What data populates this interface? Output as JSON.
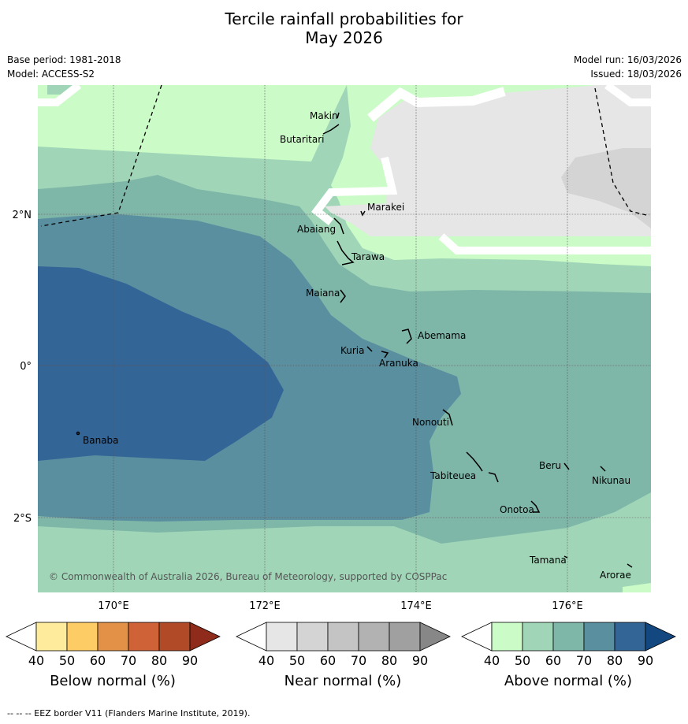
{
  "title": {
    "line1": "Tercile rainfall probabilities for",
    "line2": "May 2026"
  },
  "meta": {
    "base_period": "Base period: 1981-2018",
    "model": "Model: ACCESS-S2",
    "model_run": "Model run: 16/03/2026",
    "issued": "Issued: 18/03/2026"
  },
  "map": {
    "lon_ticks": [
      "170°E",
      "172°E",
      "174°E",
      "176°E"
    ],
    "lat_ticks": [
      "2°N",
      "0°",
      "2°S"
    ],
    "copyright": "© Commonwealth of Australia 2026, Bureau of Meteorology, supported by COSPPac",
    "places": [
      "Makin",
      "Butaritari",
      "Marakei",
      "Abaiang",
      "Tarawa",
      "Maiana",
      "Abemama",
      "Kuria",
      "Aranuka",
      "Nonouti",
      "Banaba",
      "Beru",
      "Nikunau",
      "Tabiteuea",
      "Onotoa",
      "Tamana",
      "Arorae"
    ]
  },
  "colorbars": [
    {
      "name": "below",
      "title": "Below normal (%)",
      "ticks": [
        "40",
        "50",
        "60",
        "70",
        "80",
        "90"
      ],
      "colors": [
        "#ffffff",
        "#feeb9b",
        "#fdcc65",
        "#e29146",
        "#cf6236",
        "#b04a27",
        "#8e2b1a"
      ]
    },
    {
      "name": "near",
      "title": "Near normal (%)",
      "ticks": [
        "40",
        "50",
        "60",
        "70",
        "80",
        "90"
      ],
      "colors": [
        "#ffffff",
        "#e6e6e6",
        "#d4d4d4",
        "#c4c4c4",
        "#b2b2b2",
        "#a0a0a0",
        "#878787"
      ]
    },
    {
      "name": "above",
      "title": "Above normal (%)",
      "ticks": [
        "40",
        "50",
        "60",
        "70",
        "80",
        "90"
      ],
      "colors": [
        "#ffffff",
        "#cbfbc7",
        "#a0d6b7",
        "#7eb6a8",
        "#5a8fa0",
        "#346597",
        "#134780"
      ]
    }
  ],
  "footnote": "--  --  -- EEZ border V11 (Flanders Marine Institute, 2019)."
}
